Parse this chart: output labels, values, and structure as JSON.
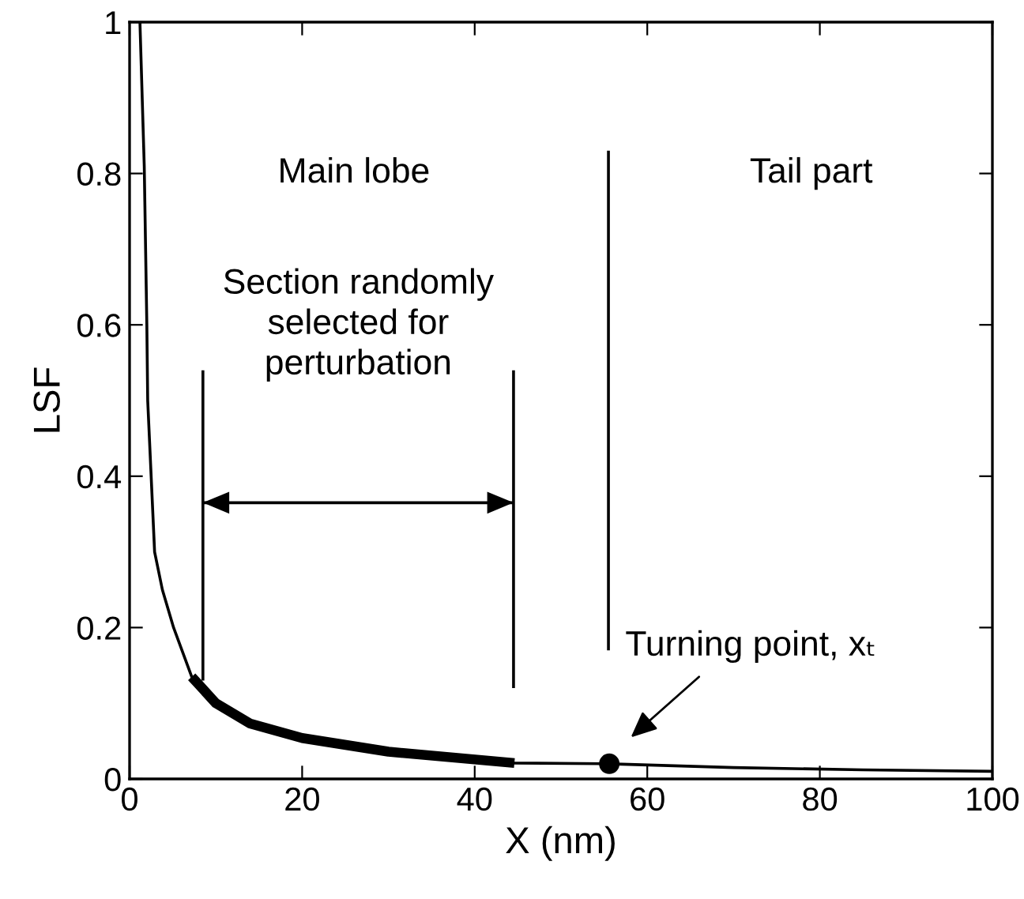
{
  "chart_data": {
    "type": "line",
    "xlabel": "X (nm)",
    "ylabel": "LSF",
    "xlim": [
      0,
      100
    ],
    "ylim": [
      0,
      1
    ],
    "xticks": [
      0,
      20,
      40,
      60,
      80,
      100
    ],
    "yticks": [
      0,
      0.2,
      0.4,
      0.6,
      0.8,
      1
    ],
    "grid": false,
    "legend": false,
    "series": [
      {
        "color": "#000000",
        "x": [
          1.2,
          1.7,
          2.0,
          2.1,
          2.9,
          3.8,
          5.1,
          7.2,
          10,
          14,
          20,
          30,
          44.6,
          55.6,
          70,
          85,
          100
        ],
        "values": [
          1.0,
          0.81,
          0.6,
          0.5,
          0.3,
          0.25,
          0.2,
          0.135,
          0.1,
          0.073,
          0.054,
          0.036,
          0.021,
          0.02,
          0.015,
          0.012,
          0.01
        ]
      },
      {
        "color": "#000000",
        "x": [
          7.2,
          10,
          14,
          20,
          30,
          44.6
        ],
        "values": [
          0.135,
          0.1,
          0.073,
          0.054,
          0.036,
          0.021
        ]
      },
      {
        "color": "#000000",
        "x": [
          8.5,
          8.5
        ],
        "values": [
          0.13,
          0.54
        ]
      },
      {
        "color": "#000000",
        "x": [
          44.5,
          44.5
        ],
        "values": [
          0.12,
          0.54
        ]
      },
      {
        "color": "#000000",
        "x": [
          55.5,
          55.5
        ],
        "values": [
          0.17,
          0.83
        ]
      },
      {
        "color": "#000000",
        "x": [
          8.5,
          44.5
        ],
        "values": [
          0.365,
          0.365
        ]
      },
      {
        "type": "scatter",
        "color": "#000000",
        "marker": "circle",
        "x": [
          55.6
        ],
        "values": [
          0.02
        ]
      }
    ],
    "annotations": [
      "Main lobe",
      "Tail part",
      "Section randomly\nselected for\nperturbation",
      {
        "text": "Turning point, xₜ",
        "x": 55.6,
        "y": 0.02
      }
    ]
  }
}
